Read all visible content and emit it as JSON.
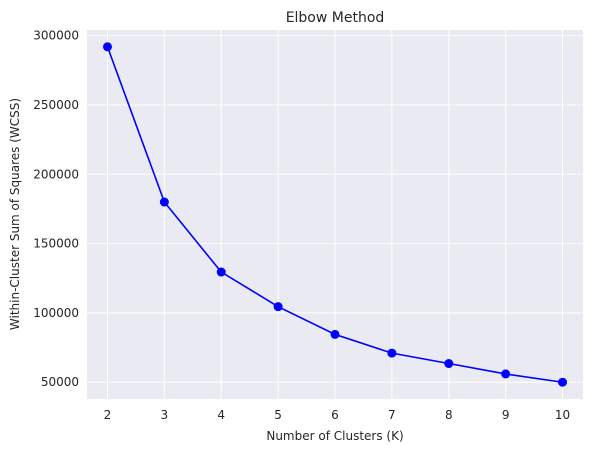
{
  "chart_data": {
    "type": "line",
    "title": "Elbow Method",
    "xlabel": "Number of Clusters (K)",
    "ylabel": "Within-Cluster Sum of Squares (WCSS)",
    "x": [
      2,
      3,
      4,
      5,
      6,
      7,
      8,
      9,
      10
    ],
    "series": [
      {
        "values": [
          292000,
          180000,
          129500,
          104500,
          84500,
          71000,
          63500,
          56000,
          50000
        ]
      }
    ],
    "xticks": [
      "2",
      "3",
      "4",
      "5",
      "6",
      "7",
      "8",
      "9",
      "10"
    ],
    "yticks": [
      "50000",
      "100000",
      "150000",
      "200000",
      "250000",
      "300000"
    ],
    "xlim": [
      1.64,
      10.36
    ],
    "ylim": [
      37900,
      304100
    ],
    "grid": true,
    "marker": "circle",
    "line_color": "#0000ff",
    "background_color": "#eaeaf2",
    "grid_color": "#ffffff"
  }
}
